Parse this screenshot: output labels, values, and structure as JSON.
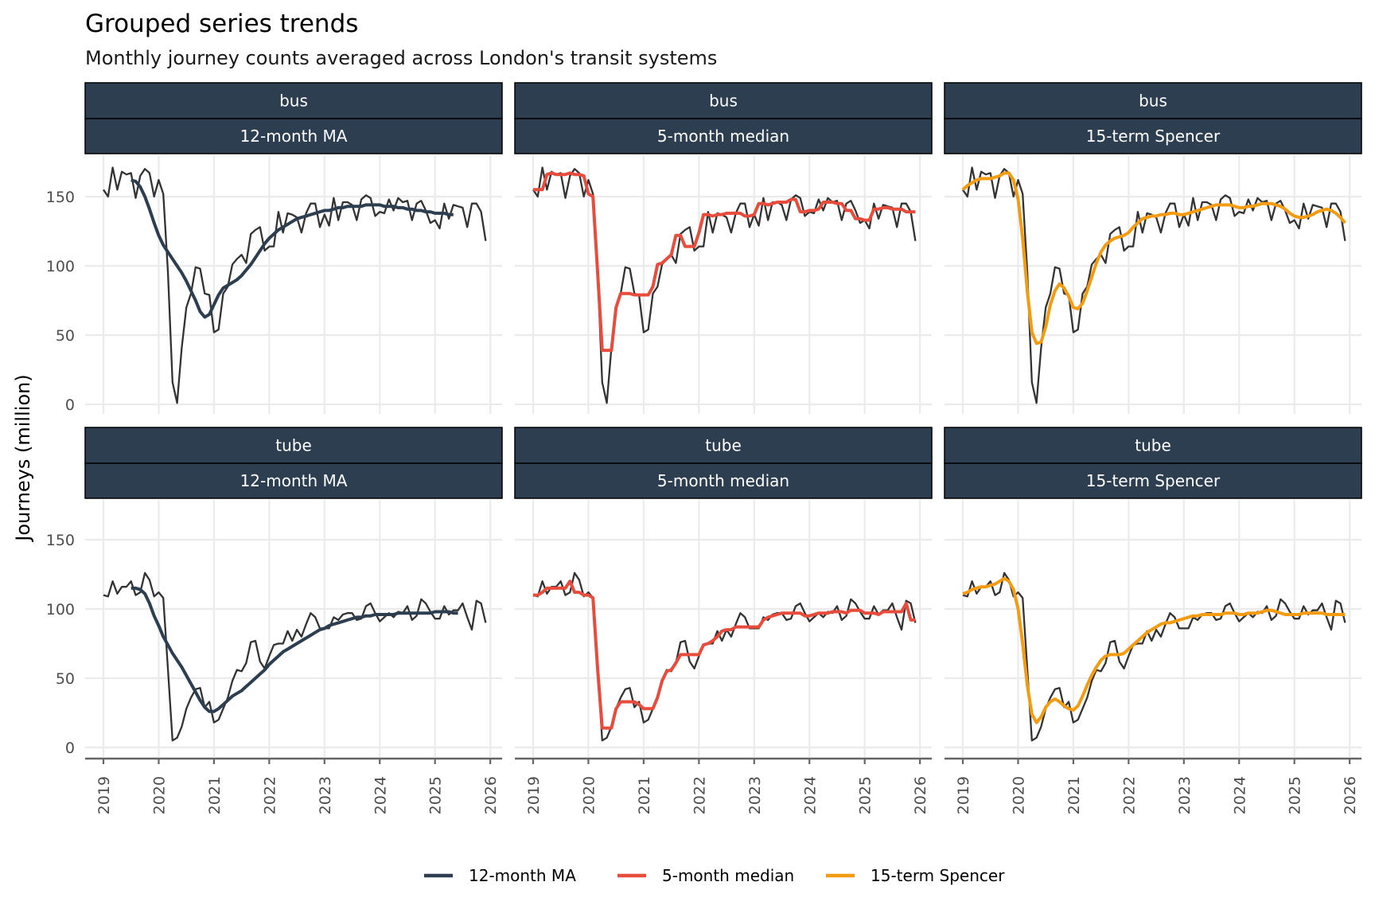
{
  "chart_data": {
    "type": "line",
    "title": "Grouped series trends",
    "subtitle": "Monthly journey counts averaged across London's transit systems",
    "xlabel": "",
    "ylabel": "Journeys (million)",
    "ylim": [
      0,
      175
    ],
    "xlim": [
      2019,
      2026
    ],
    "x_ticks": [
      "2019",
      "2020",
      "2021",
      "2022",
      "2023",
      "2024",
      "2025",
      "2026"
    ],
    "y_ticks": [
      "0",
      "50",
      "100",
      "150"
    ],
    "grid": true,
    "legend_position": "bottom",
    "facet_rows": [
      "bus",
      "tube"
    ],
    "facet_cols": [
      "12-month MA",
      "5-month median",
      "15-term Spencer"
    ],
    "x_start": "2019-01",
    "x_step": "1 month",
    "raw_color": "#333333",
    "legend": [
      {
        "name": "12-month MA",
        "color": "#2c3e50"
      },
      {
        "name": "5-month median",
        "color": "#e74c3c"
      },
      {
        "name": "15-term Spencer",
        "color": "#f39c12"
      }
    ],
    "raw": {
      "bus": [
        155,
        150,
        171,
        155,
        168,
        166,
        167,
        149,
        165,
        170,
        167,
        150,
        162,
        152,
        96,
        16,
        1,
        41,
        70,
        80,
        99,
        98,
        80,
        79,
        52,
        54,
        80,
        85,
        101,
        105,
        108,
        102,
        123,
        126,
        128,
        111,
        114,
        114,
        139,
        124,
        138,
        137,
        135,
        124,
        138,
        145,
        145,
        128,
        137,
        129,
        149,
        133,
        146,
        146,
        144,
        133,
        148,
        151,
        149,
        136,
        139,
        138,
        148,
        140,
        149,
        146,
        147,
        133,
        145,
        147,
        140,
        131,
        133,
        127,
        145,
        134,
        144,
        143,
        142,
        128,
        145,
        145,
        139,
        118
      ],
      "tube": [
        110,
        109,
        120,
        111,
        116,
        116,
        120,
        110,
        112,
        126,
        121,
        109,
        112,
        108,
        57,
        5,
        7,
        15,
        28,
        36,
        42,
        43,
        29,
        33,
        18,
        20,
        28,
        36,
        48,
        56,
        55,
        61,
        76,
        77,
        62,
        57,
        66,
        74,
        75,
        75,
        84,
        77,
        85,
        80,
        89,
        97,
        94,
        86,
        86,
        86,
        94,
        92,
        96,
        97,
        97,
        92,
        93,
        102,
        104,
        97,
        91,
        94,
        97,
        94,
        98,
        97,
        102,
        92,
        95,
        107,
        104,
        98,
        93,
        93,
        102,
        96,
        99,
        99,
        104,
        94,
        85,
        106,
        104,
        90
      ]
    },
    "smoothed": {
      "bus": {
        "12-month MA": {
          "start": "2019-07",
          "values": [
            162,
            161,
            157,
            150,
            141,
            131,
            122,
            115,
            110,
            105,
            100,
            95,
            89,
            82,
            75,
            67,
            63,
            65,
            72,
            79,
            84,
            86,
            88,
            90,
            93,
            97,
            101,
            106,
            111,
            116,
            120,
            123,
            126,
            128,
            130,
            132,
            134,
            135,
            136,
            137,
            138,
            139,
            140,
            140,
            141,
            142,
            142,
            143,
            143,
            143,
            143,
            144,
            144,
            144,
            144,
            143,
            143,
            143,
            142,
            142,
            141,
            141,
            140,
            140,
            139,
            139,
            138,
            138,
            138,
            137,
            137
          ]
        },
        "5-month median": {
          "start": "2019-01",
          "values": [
            155,
            155,
            155,
            166,
            167,
            166,
            166,
            166,
            167,
            166,
            166,
            165,
            152,
            150,
            96,
            39,
            39,
            39,
            70,
            80,
            80,
            80,
            79,
            79,
            79,
            79,
            85,
            101,
            102,
            105,
            108,
            122,
            122,
            114,
            114,
            114,
            124,
            137,
            137,
            136,
            137,
            137,
            138,
            138,
            138,
            138,
            136,
            136,
            137,
            145,
            145,
            144,
            145,
            146,
            146,
            146,
            148,
            148,
            139,
            139,
            140,
            140,
            141,
            146,
            146,
            146,
            145,
            145,
            140,
            140,
            134,
            134,
            133,
            133,
            141,
            141,
            142,
            142,
            141,
            141,
            141,
            139,
            139,
            139
          ]
        },
        "15-term Spencer": {
          "start": "2019-01",
          "values": [
            155,
            158,
            160,
            162,
            163,
            163,
            163,
            164,
            165,
            167,
            167,
            162,
            148,
            120,
            82,
            52,
            44,
            45,
            56,
            72,
            82,
            87,
            84,
            78,
            70,
            69,
            73,
            82,
            92,
            102,
            110,
            115,
            118,
            120,
            121,
            122,
            124,
            128,
            131,
            134,
            135,
            136,
            136,
            137,
            137,
            138,
            138,
            137,
            137,
            138,
            139,
            140,
            141,
            142,
            143,
            144,
            144,
            144,
            144,
            143,
            142,
            142,
            143,
            143,
            144,
            145,
            145,
            145,
            144,
            143,
            141,
            138,
            136,
            135,
            135,
            136,
            137,
            139,
            140,
            141,
            140,
            138,
            135,
            131
          ]
        }
      },
      "tube": {
        "12-month MA": {
          "start": "2019-07",
          "values": [
            115,
            115,
            114,
            111,
            104,
            95,
            88,
            80,
            74,
            68,
            63,
            58,
            52,
            46,
            40,
            34,
            29,
            26,
            26,
            28,
            31,
            34,
            37,
            39,
            41,
            44,
            47,
            50,
            53,
            56,
            60,
            63,
            66,
            69,
            71,
            73,
            75,
            77,
            79,
            81,
            83,
            85,
            86,
            88,
            89,
            90,
            91,
            92,
            93,
            94,
            94,
            95,
            95,
            96,
            96,
            96,
            96,
            96,
            97,
            97,
            97,
            97,
            97,
            97,
            97,
            97,
            98,
            98,
            98,
            98,
            97,
            97
          ]
        },
        "5-month median": {
          "start": "2019-01",
          "values": [
            110,
            110,
            112,
            115,
            115,
            115,
            115,
            115,
            120,
            112,
            112,
            110,
            110,
            108,
            57,
            14,
            14,
            14,
            28,
            33,
            33,
            33,
            33,
            31,
            28,
            28,
            28,
            36,
            48,
            55,
            56,
            61,
            67,
            67,
            67,
            67,
            67,
            74,
            75,
            77,
            80,
            84,
            85,
            85,
            87,
            87,
            87,
            87,
            87,
            87,
            92,
            94,
            95,
            96,
            97,
            97,
            97,
            97,
            97,
            95,
            95,
            96,
            97,
            97,
            97,
            98,
            98,
            98,
            97,
            99,
            99,
            99,
            97,
            97,
            97,
            96,
            98,
            98,
            98,
            98,
            98,
            104,
            92,
            92
          ]
        },
        "15-term Spencer": {
          "start": "2019-01",
          "values": [
            111,
            112,
            114,
            115,
            116,
            116,
            117,
            118,
            120,
            122,
            120,
            114,
            100,
            75,
            45,
            24,
            18,
            22,
            29,
            33,
            35,
            33,
            30,
            28,
            27,
            30,
            37,
            45,
            52,
            58,
            63,
            66,
            67,
            67,
            67,
            68,
            71,
            74,
            77,
            80,
            83,
            85,
            87,
            89,
            90,
            90,
            91,
            92,
            93,
            94,
            95,
            95,
            96,
            96,
            96,
            96,
            96,
            97,
            97,
            97,
            96,
            96,
            97,
            97,
            97,
            98,
            99,
            99,
            98,
            97,
            96,
            96,
            96,
            96,
            97,
            97,
            97,
            97,
            97,
            96,
            96,
            96,
            96,
            96
          ]
        }
      }
    }
  }
}
